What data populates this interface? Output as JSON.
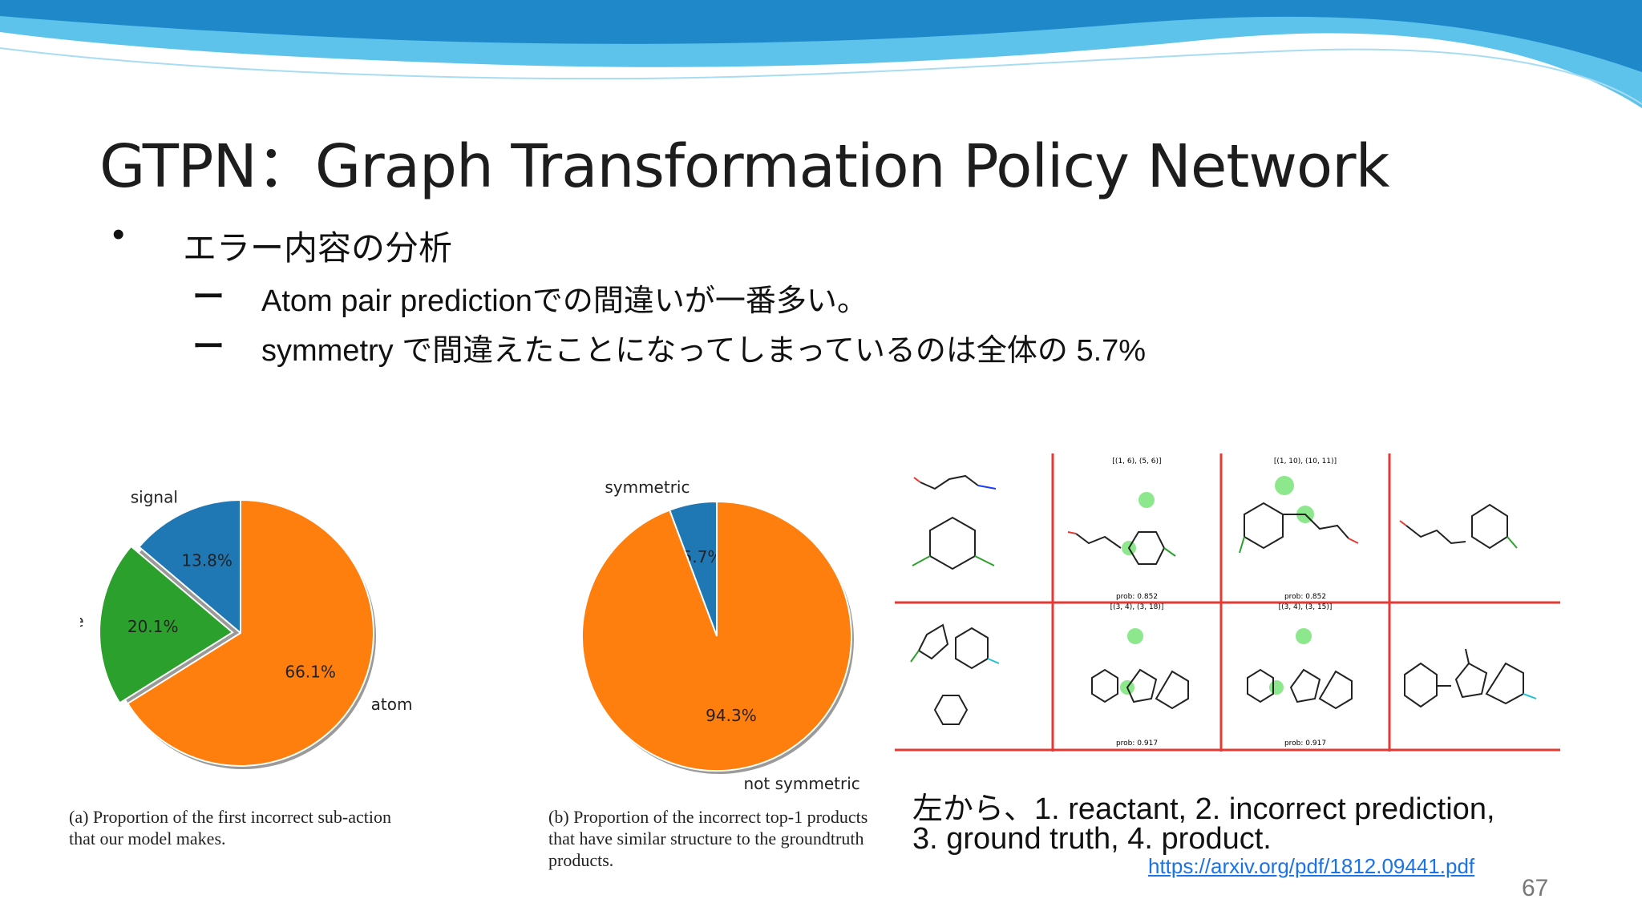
{
  "slide": {
    "title": "GTPN：Graph Transformation Policy Network",
    "bullet": {
      "symbol": "•",
      "text": "エラー内容の分析"
    },
    "sub_bullets": [
      {
        "symbol": "ー",
        "text": "Atom pair predictionでの間違いが一番多い。"
      },
      {
        "symbol": "ー",
        "text": "symmetry で間違えたことになってしまっているのは全体の 5.7%"
      }
    ],
    "note": {
      "line1": "左から、1. reactant, 2. incorrect prediction,",
      "line2": "3. ground truth, 4. product."
    },
    "source_link": "https://arxiv.org/pdf/1812.09441.pdf",
    "page_number": "67",
    "accent_colors": {
      "wave_dark": "#1e88c9",
      "wave_light": "#5ec3ea",
      "grid_red": "#e53935"
    }
  },
  "figures": {
    "caption_a": [
      "(a) Proportion of the first incorrect sub-action",
      "that our model makes."
    ],
    "caption_b": [
      "(b) Proportion of the incorrect top-1 products",
      "that have similar structure to the groundtruth",
      "products."
    ],
    "molecule_panel": {
      "row1_headers": [
        "[(1, 6), (5, 6)]",
        "[(1, 10), (10, 11)]"
      ],
      "row1_probs": [
        "prob: 0.852",
        "prob: 0.852"
      ],
      "row2_headers": [
        "[(3, 4), (3, 18)]",
        "[(3, 4), (3, 15)]"
      ],
      "row2_probs": [
        "prob: 0.917",
        "prob: 0.917"
      ]
    }
  },
  "chart_data": [
    {
      "type": "pie",
      "slices": [
        {
          "label": "signal",
          "value": 13.8,
          "pct_label": "13.8%",
          "color": "#1f77b4",
          "exploded": false
        },
        {
          "label": "bond type",
          "value": 20.1,
          "pct_label": "20.1%",
          "color": "#2ca02c",
          "exploded": true
        },
        {
          "label": "atom pair",
          "value": 66.1,
          "pct_label": "66.1%",
          "color": "#ff7f0e",
          "exploded": false
        }
      ]
    },
    {
      "type": "pie",
      "slices": [
        {
          "label": "symmetric",
          "value": 5.7,
          "pct_label": "5.7%",
          "color": "#1f77b4"
        },
        {
          "label": "not symmetric",
          "value": 94.3,
          "pct_label": "94.3%",
          "color": "#ff7f0e"
        }
      ]
    }
  ]
}
